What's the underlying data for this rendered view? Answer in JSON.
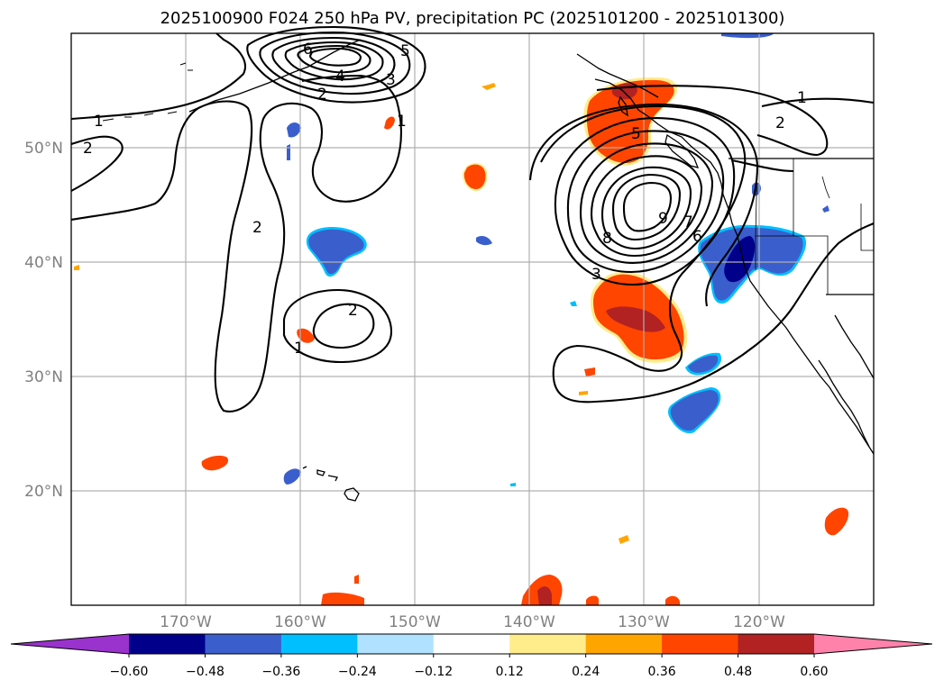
{
  "title": "2025100900 F024 250 hPa PV, precipitation PC (2025101200 - 2025101300)",
  "lon_labels": [
    "170°W",
    "160°W",
    "150°W",
    "140°W",
    "130°W",
    "120°W"
  ],
  "lat_labels": [
    "50°N",
    "40°N",
    "30°N",
    "20°N"
  ],
  "colorbar": {
    "ticks": [
      "−0.60",
      "−0.48",
      "−0.36",
      "−0.24",
      "−0.12",
      "0.12",
      "0.24",
      "0.36",
      "0.48",
      "0.60"
    ],
    "colors": [
      "#9a32cd",
      "#00008b",
      "#3a5fcd",
      "#00bfff",
      "#b0e2ff",
      "#ffffff",
      "#ffec8b",
      "#ffa500",
      "#ff4500",
      "#b22222",
      "#ff82ab"
    ]
  },
  "contour_labels": [
    "1",
    "2",
    "3",
    "4",
    "5",
    "6",
    "7",
    "8",
    "9"
  ],
  "chart_data": {
    "type": "map",
    "title": "2025100900 F024 250 hPa PV, precipitation PC (2025101200 - 2025101300)",
    "lon_range": [
      -180,
      -110
    ],
    "lat_range": [
      10,
      60
    ],
    "lon_ticks": [
      -170,
      -160,
      -150,
      -140,
      -130,
      -120
    ],
    "lat_ticks": [
      50,
      40,
      30,
      20
    ],
    "contour_field": "250 hPa PV",
    "contour_levels": [
      1,
      2,
      3,
      4,
      5,
      6,
      7,
      8,
      9
    ],
    "shaded_field": "precipitation PC",
    "shading_levels": [
      -0.6,
      -0.48,
      -0.36,
      -0.24,
      -0.12,
      0.12,
      0.24,
      0.36,
      0.48,
      0.6
    ]
  }
}
